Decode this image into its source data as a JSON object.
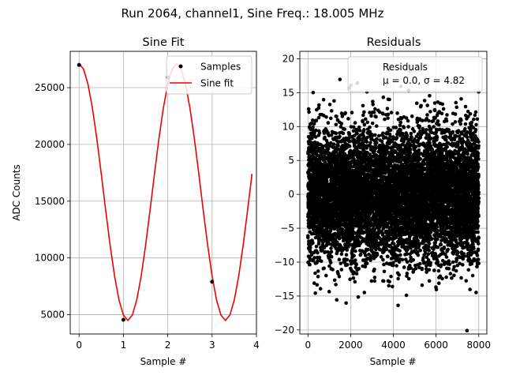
{
  "figure": {
    "suptitle": "Run 2064, channel1, Sine Freq.: 18.005 MHz"
  },
  "chart_data": [
    {
      "type": "line",
      "title": "Sine Fit",
      "xlabel": "Sample #",
      "ylabel": "ADC Counts",
      "xlim": [
        -0.2,
        4.0
      ],
      "ylim": [
        3300,
        28200
      ],
      "xticks": [
        0,
        1,
        2,
        3,
        4
      ],
      "yticks": [
        5000,
        10000,
        15000,
        20000,
        25000
      ],
      "xtick_labels": [
        "0",
        "1",
        "2",
        "3",
        "4"
      ],
      "ytick_labels": [
        "5000",
        "10000",
        "15000",
        "20000",
        "25000"
      ],
      "grid": true,
      "legend": {
        "location": "upper right",
        "entries": [
          "Samples",
          "Sine fit"
        ]
      },
      "series": [
        {
          "name": "Samples",
          "kind": "scatter",
          "x": [
            0,
            1,
            2,
            3
          ],
          "y": [
            27000,
            4550,
            25900,
            7900
          ]
        },
        {
          "name": "Sine fit",
          "kind": "line",
          "fit": {
            "amplitude": 11300,
            "offset": 15800,
            "period": 2.2,
            "phase_x": 0.0,
            "x_start": 0.0,
            "x_end": 3.9,
            "step": 0.1
          }
        }
      ],
      "colors": {
        "samples": "#000000",
        "fit": "#ee0000"
      }
    },
    {
      "type": "scatter",
      "title": "Residuals",
      "xlabel": "Sample #",
      "xlim": [
        -380,
        8380
      ],
      "ylim": [
        -20.6,
        21.1
      ],
      "xticks": [
        0,
        2000,
        4000,
        6000,
        8000
      ],
      "yticks": [
        -20,
        -15,
        -10,
        -5,
        0,
        5,
        10,
        15,
        20
      ],
      "xtick_labels": [
        "0",
        "2000",
        "4000",
        "6000",
        "8000"
      ],
      "ytick_labels": [
        "−20",
        "−15",
        "−10",
        "−5",
        "0",
        "5",
        "10",
        "15",
        "20"
      ],
      "grid": true,
      "legend": {
        "location": "upper right",
        "entries": [
          "Residuals",
          "μ = 0.0, σ = 4.82"
        ]
      },
      "series": [
        {
          "name": "Residuals",
          "n_points": 8000,
          "mean": 0.0,
          "sigma": 4.82,
          "x_range": [
            0,
            8000
          ]
        }
      ],
      "colors": {
        "points": "#000000"
      }
    }
  ]
}
